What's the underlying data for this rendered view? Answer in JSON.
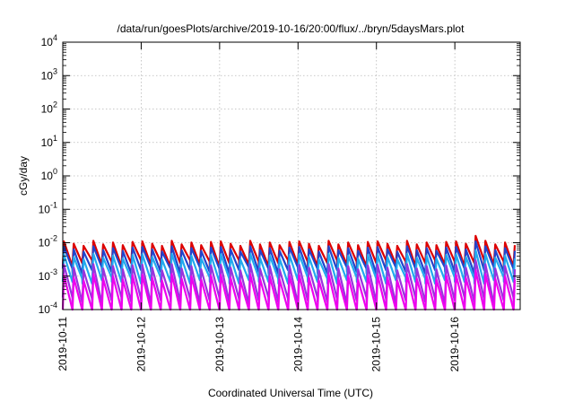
{
  "chart_data": {
    "type": "line",
    "title": "/data/run/goesPlots/archive/2019-10-16/20:00/flux/../bryn/5daysMars.plot",
    "xlabel": "Coordinated Universal Time (UTC)",
    "ylabel": "cGy/day",
    "yscale": "log",
    "ylim": [
      0.0001,
      10000
    ],
    "y_ticks": [
      {
        "base": "10",
        "exp": "-4"
      },
      {
        "base": "10",
        "exp": "-3"
      },
      {
        "base": "10",
        "exp": "-2"
      },
      {
        "base": "10",
        "exp": "-1"
      },
      {
        "base": "10",
        "exp": "0"
      },
      {
        "base": "10",
        "exp": "1"
      },
      {
        "base": "10",
        "exp": "2"
      },
      {
        "base": "10",
        "exp": "3"
      },
      {
        "base": "10",
        "exp": "4"
      }
    ],
    "x_range": [
      "2019-10-11",
      "2019-10-16 20:00"
    ],
    "x_ticks": [
      "2019-10-11",
      "2019-10-12",
      "2019-10-13",
      "2019-10-14",
      "2019-10-15",
      "2019-10-16"
    ],
    "grid": true,
    "teeth_per_day": 8,
    "series": [
      {
        "color": "#dd0000",
        "peak": 0.011,
        "trough": 0.0026,
        "spike": 0.016
      },
      {
        "color": "#2244cc",
        "peak": 0.0075,
        "trough": 0.0016,
        "spike": 0.011
      },
      {
        "color": "#22aaee",
        "peak": 0.0045,
        "trough": 0.0008,
        "spike": 0.006
      },
      {
        "color": "#9933dd",
        "peak": 0.0022,
        "trough": 0.0002,
        "spike": 0.003
      },
      {
        "color": "#ee00ee",
        "peak": 0.0011,
        "trough": 8e-05,
        "spike": 0.0015
      }
    ]
  }
}
